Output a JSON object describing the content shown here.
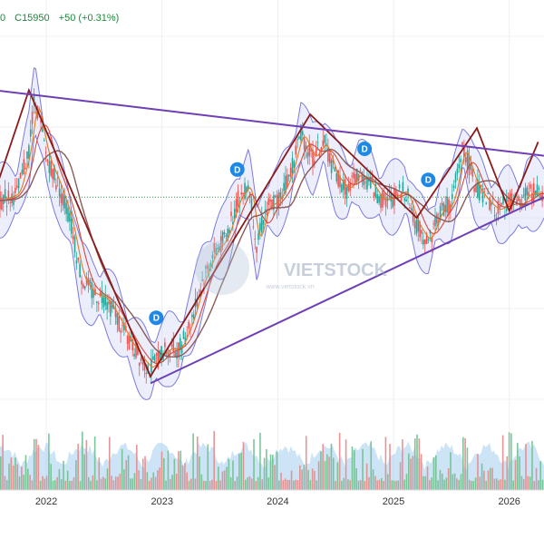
{
  "quote": {
    "open_tail": "0",
    "close": "C15950",
    "change": "+50 (+0.31%)"
  },
  "watermark": "VIETSTOCK",
  "watermark_sub": "www.vietstock.vn",
  "marker_label": "D",
  "colors": {
    "candle_up": "#26a69a",
    "candle_down": "#ef5350",
    "trendline": "#6f3fb5",
    "zigzag": "#8b1a1a",
    "ma_short": "#e07b1f",
    "ma_mid": "#d9483b",
    "ma_long": "#8a5a5a",
    "bollinger": "#5b5bd6",
    "volume_up": "#6fbf8f",
    "volume_down": "#e28a8a",
    "volume_area": "#8fc3e8",
    "marker": "#1e88e5",
    "quote": "#1a8a3a"
  },
  "chart_data": {
    "type": "line",
    "title": "",
    "xlabel": "",
    "ylabel": "",
    "x_ticks": [
      "2022",
      "2023",
      "2024",
      "2025",
      "2026"
    ],
    "x_range": [
      2021.6,
      2026.3
    ],
    "y_range": [
      0,
      100
    ],
    "price_series": {
      "x": [
        2021.6,
        2021.75,
        2021.85,
        2021.9,
        2022.0,
        2022.1,
        2022.2,
        2022.3,
        2022.4,
        2022.5,
        2022.6,
        2022.7,
        2022.8,
        2022.9,
        2022.95,
        2023.05,
        2023.15,
        2023.25,
        2023.35,
        2023.45,
        2023.55,
        2023.65,
        2023.75,
        2023.82,
        2023.9,
        2024.0,
        2024.1,
        2024.2,
        2024.3,
        2024.4,
        2024.5,
        2024.6,
        2024.7,
        2024.8,
        2024.9,
        2025.0,
        2025.1,
        2025.2,
        2025.3,
        2025.4,
        2025.5,
        2025.6,
        2025.7,
        2025.8,
        2025.9,
        2026.0,
        2026.1,
        2026.15
      ],
      "y": [
        55,
        57,
        70,
        85,
        68,
        60,
        50,
        33,
        28,
        27,
        22,
        15,
        10,
        6,
        9,
        12,
        12,
        20,
        32,
        40,
        44,
        55,
        60,
        42,
        53,
        55,
        62,
        75,
        67,
        72,
        62,
        58,
        63,
        60,
        55,
        56,
        58,
        48,
        43,
        52,
        54,
        71,
        60,
        55,
        52,
        55,
        53,
        57
      ]
    },
    "upper_trendline": {
      "x": [
        2021.55,
        2026.3
      ],
      "y": [
        87,
        68
      ]
    },
    "lower_trendline": {
      "x": [
        2022.9,
        2026.3
      ],
      "y": [
        2,
        56
      ]
    },
    "zigzag": {
      "x": [
        2021.55,
        2021.85,
        2022.9,
        2024.28,
        2025.2,
        2025.72,
        2026.0,
        2026.25
      ],
      "y": [
        57,
        87,
        4,
        80,
        50,
        76,
        52,
        72
      ]
    },
    "markers": {
      "x": [
        2023.65,
        2024.75,
        2025.3,
        2022.95
      ],
      "y": [
        64,
        70,
        61,
        21
      ]
    }
  }
}
